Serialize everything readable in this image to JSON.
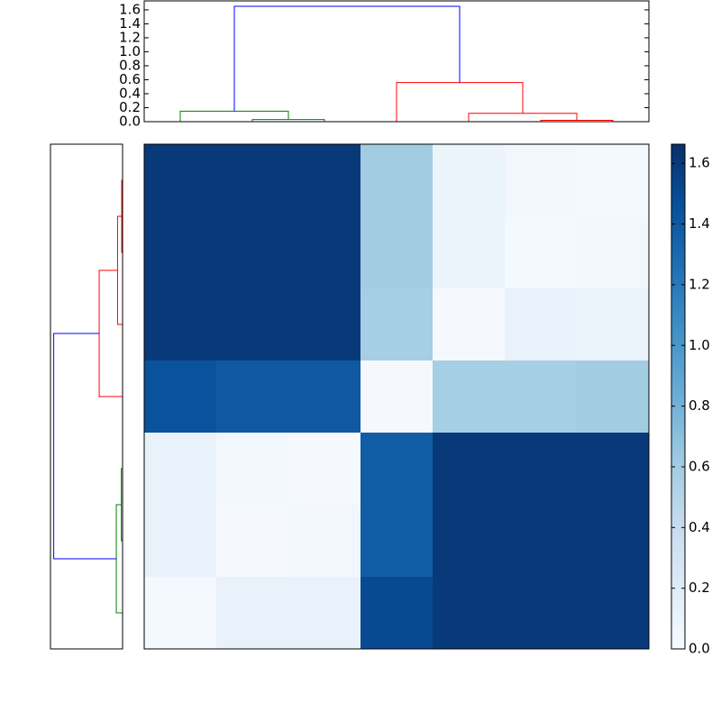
{
  "chart_data": [
    {
      "type": "dendrogram",
      "orientation": "top",
      "xlim": [
        0,
        70
      ],
      "ylim": [
        0,
        1.728
      ],
      "yticks": [
        {
          "value": 0,
          "label": "0.0"
        },
        0.2,
        0.4,
        0.6,
        0.8,
        {
          "value": 1,
          "label": "1.0"
        },
        1.2,
        1.4,
        1.6
      ],
      "links": [
        {
          "color": "#008000",
          "pos": [
            15,
            15,
            25,
            25
          ],
          "height": [
            0,
            0.03,
            0.03,
            0
          ]
        },
        {
          "color": "#008000",
          "pos": [
            5,
            5,
            20,
            20
          ],
          "height": [
            0,
            0.15,
            0.15,
            0.03
          ]
        },
        {
          "color": "#ff0000",
          "pos": [
            55,
            55,
            65,
            65
          ],
          "height": [
            0,
            0.02,
            0.02,
            0
          ]
        },
        {
          "color": "#ff0000",
          "pos": [
            45,
            45,
            60,
            60
          ],
          "height": [
            0,
            0.12,
            0.12,
            0.02
          ]
        },
        {
          "color": "#ff0000",
          "pos": [
            35,
            35,
            52.5,
            52.5
          ],
          "height": [
            0,
            0.56,
            0.56,
            0.12
          ]
        },
        {
          "color": "#0000ff",
          "pos": [
            12.5,
            12.5,
            43.75,
            43.75
          ],
          "height": [
            0.15,
            1.65,
            1.65,
            0.56
          ]
        }
      ]
    },
    {
      "type": "dendrogram",
      "orientation": "left",
      "xlim": [
        1.728,
        0
      ],
      "ylim": [
        0,
        70
      ],
      "links": [
        {
          "color": "#ff0000",
          "pos": [
            5,
            5,
            15,
            15
          ],
          "height": [
            0,
            0.02,
            0.02,
            0
          ]
        },
        {
          "color": "#ff0000",
          "pos": [
            10,
            10,
            25,
            25
          ],
          "height": [
            0.02,
            0.12,
            0.12,
            0
          ]
        },
        {
          "color": "#ff0000",
          "pos": [
            17.5,
            17.5,
            35,
            35
          ],
          "height": [
            0.12,
            0.56,
            0.56,
            0
          ]
        },
        {
          "color": "#008000",
          "pos": [
            45,
            45,
            55,
            55
          ],
          "height": [
            0,
            0.03,
            0.03,
            0
          ]
        },
        {
          "color": "#008000",
          "pos": [
            50,
            50,
            65,
            65
          ],
          "height": [
            0.03,
            0.15,
            0.15,
            0
          ]
        },
        {
          "color": "#0000ff",
          "pos": [
            26.25,
            26.25,
            57.5,
            57.5
          ],
          "height": [
            0.56,
            1.65,
            1.65,
            0.15
          ]
        }
      ]
    },
    {
      "type": "heatmap",
      "colormap": "Blues",
      "clim": [
        0,
        1.663
      ],
      "values": [
        [
          1.6,
          1.6,
          1.6,
          0.6,
          0.1,
          0.05,
          0.03
        ],
        [
          1.6,
          1.6,
          1.6,
          0.6,
          0.1,
          0.03,
          0.05
        ],
        [
          1.6,
          1.6,
          1.6,
          0.58,
          0.02,
          0.12,
          0.1
        ],
        [
          1.45,
          1.4,
          1.4,
          0.02,
          0.58,
          0.58,
          0.6
        ],
        [
          0.12,
          0.05,
          0.02,
          1.38,
          1.6,
          1.6,
          1.6
        ],
        [
          0.12,
          0.02,
          0.05,
          1.38,
          1.6,
          1.6,
          1.6
        ],
        [
          0.03,
          0.12,
          0.12,
          1.5,
          1.6,
          1.6,
          1.6
        ]
      ],
      "colorbar_ticks": [
        {
          "value": 0,
          "label": "0.0"
        },
        0.2,
        0.4,
        0.6,
        0.8,
        {
          "value": 1,
          "label": "1.0"
        },
        1.2,
        1.4,
        1.6
      ]
    }
  ]
}
